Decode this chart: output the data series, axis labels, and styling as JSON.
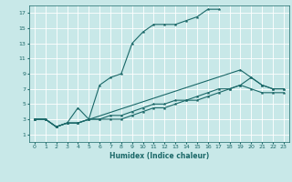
{
  "xlabel": "Humidex (Indice chaleur)",
  "bg_color": "#c8e8e8",
  "grid_color": "#b0d8d8",
  "line_color": "#1a6868",
  "xlim": [
    -0.5,
    23.5
  ],
  "ylim": [
    0,
    18
  ],
  "xticks": [
    0,
    1,
    2,
    3,
    4,
    5,
    6,
    7,
    8,
    9,
    10,
    11,
    12,
    13,
    14,
    15,
    16,
    17,
    18,
    19,
    20,
    21,
    22,
    23
  ],
  "yticks": [
    1,
    3,
    5,
    7,
    9,
    11,
    13,
    15,
    17
  ],
  "line1_x": [
    0,
    1,
    2,
    3,
    4,
    5,
    6,
    7,
    8,
    9,
    10,
    11,
    12,
    13,
    14,
    15,
    16,
    17
  ],
  "line1_y": [
    3,
    3,
    2,
    2.5,
    4.5,
    3,
    7.5,
    8.5,
    9,
    13,
    14.5,
    15.5,
    15.5,
    15.5,
    16,
    16.5,
    17.5,
    17.5
  ],
  "line2_x": [
    0,
    1,
    2,
    3,
    4,
    19,
    20,
    21,
    22,
    23
  ],
  "line2_y": [
    3,
    3,
    2,
    2.5,
    2.5,
    9.5,
    8.5,
    7.5,
    7,
    7
  ],
  "line3_x": [
    0,
    1,
    2,
    3,
    4,
    5,
    6,
    7,
    8,
    9,
    10,
    11,
    12,
    13,
    14,
    15,
    16,
    17,
    18,
    19,
    20,
    21,
    22,
    23
  ],
  "line3_y": [
    3,
    3,
    2,
    2.5,
    2.5,
    3,
    3,
    3,
    3,
    3.5,
    4,
    4.5,
    4.5,
    5,
    5.5,
    6,
    6.5,
    7,
    7,
    7.5,
    7,
    6.5,
    6.5,
    6.5
  ],
  "line4_x": [
    0,
    1,
    2,
    3,
    4,
    5,
    6,
    7,
    8,
    9,
    10,
    11,
    12,
    13,
    14,
    15,
    16,
    17,
    18,
    19,
    20,
    21,
    22,
    23
  ],
  "line4_y": [
    3,
    3,
    2,
    2.5,
    2.5,
    3,
    3,
    3.5,
    3.5,
    4,
    4.5,
    5,
    5,
    5.5,
    5.5,
    5.5,
    6,
    6.5,
    7,
    7.5,
    8.5,
    7.5,
    7,
    7
  ]
}
